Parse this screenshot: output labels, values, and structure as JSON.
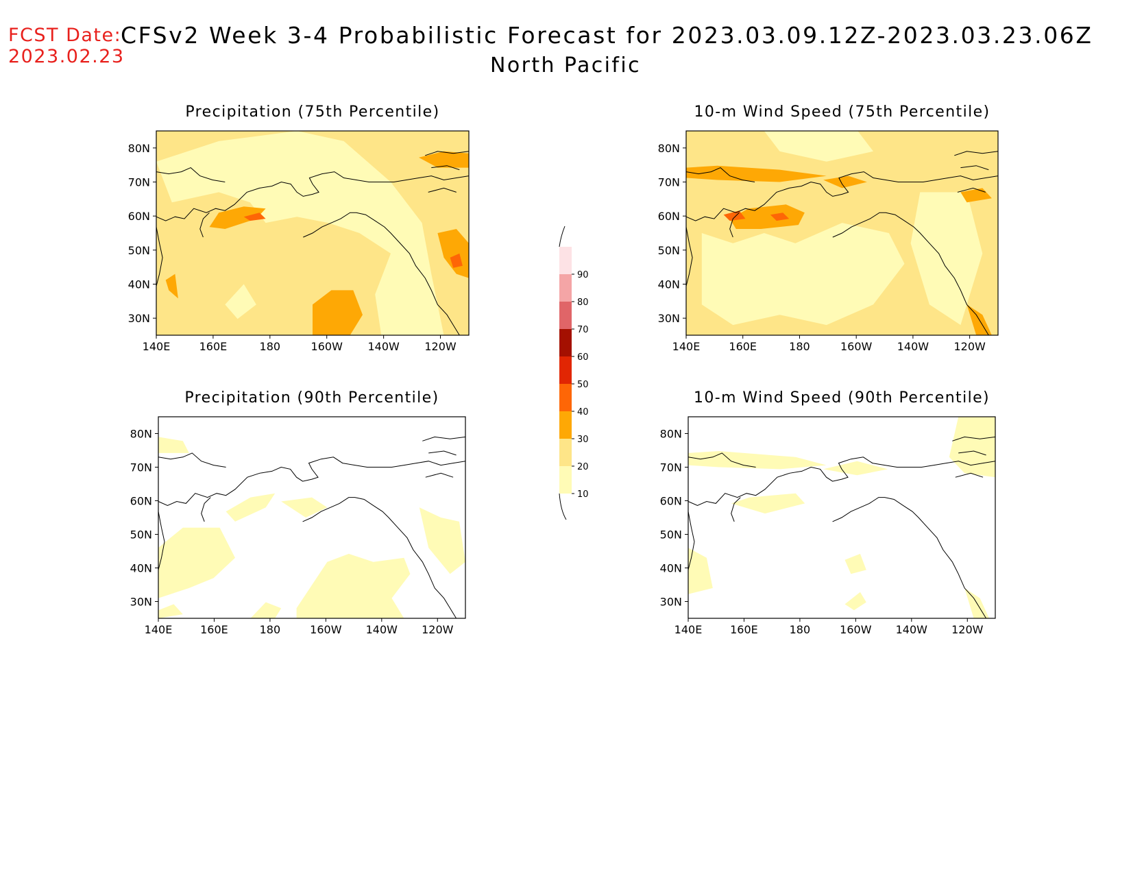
{
  "header": {
    "fcst_label": "FCST Date:",
    "fcst_date": "2023.02.23",
    "title": "CFSv2 Week 3-4 Probabilistic Forecast for 2023.03.09.12Z-2023.03.23.06Z",
    "region": "North Pacific"
  },
  "axes": {
    "lon_labels": [
      "140E",
      "160E",
      "180",
      "160W",
      "140W",
      "120W"
    ],
    "lat_labels": [
      "80N",
      "70N",
      "60N",
      "50N",
      "40N",
      "30N"
    ],
    "lon_range_deg_east": [
      140,
      250
    ],
    "lat_range": [
      25,
      85
    ]
  },
  "colorbar": {
    "levels": [
      10,
      20,
      30,
      40,
      50,
      60,
      70,
      80,
      90
    ],
    "colors": [
      "#fffbb6",
      "#fee588",
      "#fea805",
      "#fe6606",
      "#e12603",
      "#a41001",
      "#e06568",
      "#f4a5a6",
      "#fde2e5"
    ]
  },
  "panels": [
    {
      "title": "Precipitation (75th Percentile)",
      "variable": "precipitation",
      "percentile": 75
    },
    {
      "title": "10-m Wind Speed (75th Percentile)",
      "variable": "wind_speed",
      "percentile": 75
    },
    {
      "title": "Precipitation (90th Percentile)",
      "variable": "precipitation",
      "percentile": 90
    },
    {
      "title": "10-m Wind Speed (90th Percentile)",
      "variable": "wind_speed",
      "percentile": 90
    }
  ]
}
